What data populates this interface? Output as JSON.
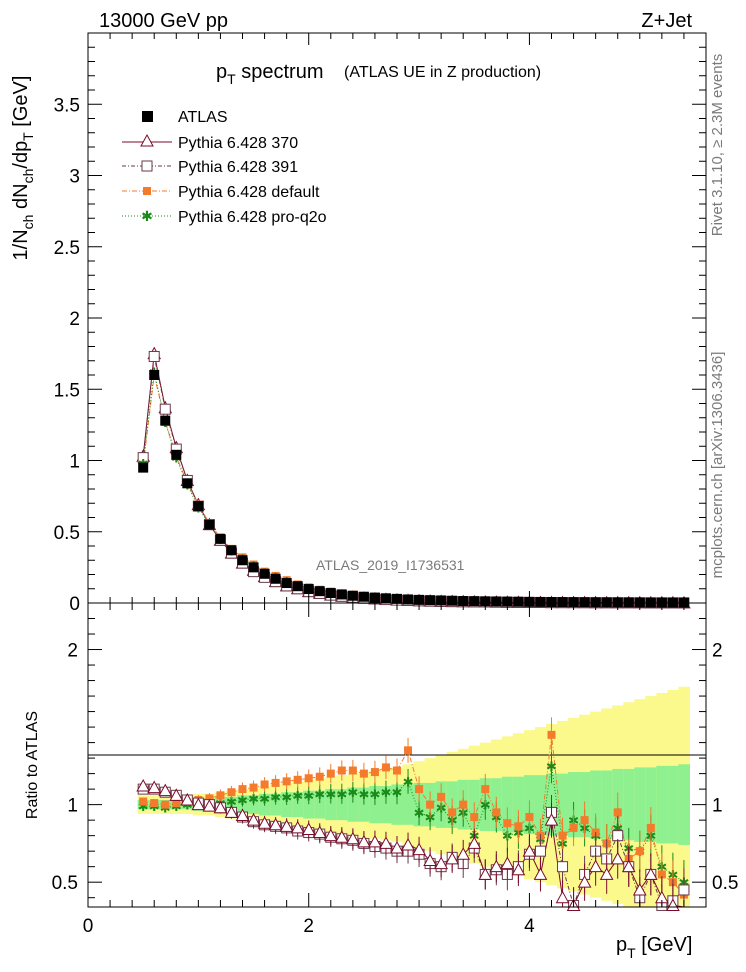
{
  "header": {
    "left": "13000 GeV pp",
    "right": "Z+Jet"
  },
  "side_labels": {
    "top": "Rivet 3.1.10, ≥ 2.3M events",
    "bottom": "mcplots.cern.ch [arXiv:1306.3436]"
  },
  "watermark": "ATLAS_2019_I1736531",
  "colors": {
    "atlas": "#000000",
    "p370": "#7a0b2a",
    "p391": "#6a3a4a",
    "default": "#f47a2c",
    "proq2o": "#1a8a1a",
    "band_inner": "#8ef08e",
    "band_outer": "#fbf98c"
  },
  "chart_data": [
    {
      "type": "scatter",
      "title_main": "p",
      "title_sub": "T",
      "title_rest": " spectrum",
      "title_note": "(ATLAS UE in Z production)",
      "ylabel": "1/N",
      "ylabel_parts": [
        "1/N",
        "ch",
        " dN",
        "ch",
        "/dp",
        "T",
        " [GeV]"
      ],
      "ylim": [
        0,
        4.0
      ],
      "yticks": [
        {
          "v": 0,
          "label": "0"
        },
        {
          "v": 0.5,
          "label": "0.5"
        },
        {
          "v": 1,
          "label": "1"
        },
        {
          "v": 1.5,
          "label": "1.5"
        },
        {
          "v": 2,
          "label": "2"
        },
        {
          "v": 2.5,
          "label": "2.5"
        },
        {
          "v": 3,
          "label": "3"
        },
        {
          "v": 3.5,
          "label": "3.5"
        }
      ],
      "legend": [
        "ATLAS",
        "Pythia 6.428 370",
        "Pythia 6.428 391",
        "Pythia 6.428 default",
        "Pythia 6.428 pro-q2o"
      ],
      "x": [
        0.5,
        0.6,
        0.7,
        0.8,
        0.9,
        1.0,
        1.1,
        1.2,
        1.3,
        1.4,
        1.5,
        1.6,
        1.7,
        1.8,
        1.9,
        2.0,
        2.1,
        2.2,
        2.3,
        2.4,
        2.5,
        2.6,
        2.7,
        2.8,
        2.9,
        3.0,
        3.1,
        3.2,
        3.3,
        3.4,
        3.5,
        3.6,
        3.7,
        3.8,
        3.9,
        4.0,
        4.1,
        4.2,
        4.3,
        4.4,
        4.5,
        4.6,
        4.7,
        4.8,
        4.9,
        5.0,
        5.1,
        5.2,
        5.3,
        5.4
      ],
      "series": [
        {
          "name": "ATLAS",
          "values": [
            0.95,
            1.6,
            1.28,
            1.04,
            0.84,
            0.68,
            0.55,
            0.45,
            0.37,
            0.3,
            0.25,
            0.205,
            0.17,
            0.14,
            0.118,
            0.098,
            0.083,
            0.07,
            0.06,
            0.051,
            0.044,
            0.038,
            0.033,
            0.029,
            0.025,
            0.022,
            0.02,
            0.018,
            0.016,
            0.014,
            0.013,
            0.012,
            0.011,
            0.01,
            0.009,
            0.008,
            0.0075,
            0.007,
            0.0065,
            0.006,
            0.0055,
            0.005,
            0.0047,
            0.0044,
            0.0041,
            0.0038,
            0.0035,
            0.0033,
            0.0031,
            0.0029
          ]
        },
        {
          "name": "Pythia 6.428 370",
          "values": [
            1.03,
            1.75,
            1.37,
            1.09,
            0.86,
            0.69,
            0.55,
            0.44,
            0.35,
            0.28,
            0.23,
            0.185,
            0.15,
            0.12,
            0.1,
            0.08,
            0.068,
            0.056,
            0.048,
            0.04,
            0.034,
            0.029,
            0.025,
            0.021,
            0.018,
            0.016,
            0.013,
            0.011,
            0.01,
            0.009,
            0.008,
            0.007,
            0.006,
            0.005,
            0.0045,
            0.004,
            0.0035,
            0.003,
            0.0028,
            0.0025,
            0.0022,
            0.002,
            0.0018,
            0.0016,
            0.0015,
            0.0014,
            0.0013,
            0.0012,
            0.0011,
            0.001
          ]
        },
        {
          "name": "Pythia 6.428 391",
          "values": [
            1.02,
            1.73,
            1.36,
            1.08,
            0.86,
            0.68,
            0.55,
            0.44,
            0.35,
            0.28,
            0.22,
            0.18,
            0.15,
            0.12,
            0.1,
            0.08,
            0.067,
            0.055,
            0.047,
            0.04,
            0.033,
            0.028,
            0.024,
            0.02,
            0.018,
            0.015,
            0.013,
            0.011,
            0.01,
            0.009,
            0.008,
            0.007,
            0.006,
            0.005,
            0.0045,
            0.004,
            0.0035,
            0.003,
            0.0028,
            0.0025,
            0.0022,
            0.002,
            0.0018,
            0.0016,
            0.0015,
            0.0014,
            0.0013,
            0.0012,
            0.0011,
            0.001
          ]
        },
        {
          "name": "Pythia 6.428 default",
          "values": [
            0.97,
            1.6,
            1.27,
            1.03,
            0.84,
            0.69,
            0.56,
            0.46,
            0.38,
            0.32,
            0.27,
            0.22,
            0.19,
            0.16,
            0.13,
            0.11,
            0.093,
            0.08,
            0.068,
            0.058,
            0.05,
            0.044,
            0.038,
            0.033,
            0.029,
            0.025,
            0.022,
            0.02,
            0.018,
            0.016,
            0.014,
            0.013,
            0.012,
            0.011,
            0.01,
            0.009,
            0.008,
            0.0075,
            0.007,
            0.0065,
            0.006,
            0.0055,
            0.005,
            0.0047,
            0.0044,
            0.0041,
            0.0038,
            0.0035,
            0.0033,
            0.0031
          ]
        },
        {
          "name": "Pythia 6.428 pro-q2o",
          "values": [
            0.98,
            1.62,
            1.27,
            1.02,
            0.83,
            0.67,
            0.55,
            0.45,
            0.37,
            0.31,
            0.26,
            0.21,
            0.18,
            0.15,
            0.12,
            0.1,
            0.086,
            0.073,
            0.062,
            0.053,
            0.045,
            0.039,
            0.034,
            0.03,
            0.026,
            0.023,
            0.02,
            0.018,
            0.016,
            0.014,
            0.013,
            0.012,
            0.011,
            0.01,
            0.009,
            0.008,
            0.0075,
            0.007,
            0.0065,
            0.006,
            0.0055,
            0.005,
            0.0047,
            0.0044,
            0.0041,
            0.0038,
            0.0035,
            0.0033,
            0.0031,
            0.0029
          ]
        }
      ]
    },
    {
      "type": "scatter",
      "ylabel": "Ratio to ATLAS",
      "xlabel_main": "p",
      "xlabel_sub": "T",
      "xlabel_rest": " [GeV]",
      "xlim": [
        0,
        5.6
      ],
      "ylim": [
        0.34,
        2.3
      ],
      "xticks": [
        {
          "v": 0,
          "label": "0"
        },
        {
          "v": 2,
          "label": "2"
        },
        {
          "v": 4,
          "label": "4"
        }
      ],
      "yticks": [
        {
          "v": 0.5,
          "label": "0.5"
        },
        {
          "v": 1,
          "label": "1"
        },
        {
          "v": 2,
          "label": "2"
        }
      ],
      "x": [
        0.5,
        0.6,
        0.7,
        0.8,
        0.9,
        1.0,
        1.1,
        1.2,
        1.3,
        1.4,
        1.5,
        1.6,
        1.7,
        1.8,
        1.9,
        2.0,
        2.1,
        2.2,
        2.3,
        2.4,
        2.5,
        2.6,
        2.7,
        2.8,
        2.9,
        3.0,
        3.1,
        3.2,
        3.3,
        3.4,
        3.5,
        3.6,
        3.7,
        3.8,
        3.9,
        4.0,
        4.1,
        4.2,
        4.3,
        4.4,
        4.5,
        4.6,
        4.7,
        4.8,
        4.9,
        5.0,
        5.1,
        5.2,
        5.3,
        5.4
      ],
      "band_inner_halfwidth": [
        0.03,
        0.03,
        0.03,
        0.03,
        0.03,
        0.04,
        0.04,
        0.05,
        0.05,
        0.06,
        0.06,
        0.07,
        0.07,
        0.08,
        0.08,
        0.09,
        0.09,
        0.1,
        0.1,
        0.11,
        0.11,
        0.12,
        0.12,
        0.13,
        0.13,
        0.14,
        0.14,
        0.15,
        0.15,
        0.16,
        0.16,
        0.17,
        0.17,
        0.18,
        0.18,
        0.19,
        0.19,
        0.2,
        0.2,
        0.21,
        0.21,
        0.22,
        0.22,
        0.23,
        0.23,
        0.24,
        0.24,
        0.25,
        0.25,
        0.26
      ],
      "band_outer_halfwidth": [
        0.06,
        0.06,
        0.06,
        0.06,
        0.06,
        0.07,
        0.07,
        0.08,
        0.09,
        0.1,
        0.11,
        0.12,
        0.13,
        0.14,
        0.15,
        0.16,
        0.17,
        0.18,
        0.19,
        0.2,
        0.21,
        0.22,
        0.23,
        0.24,
        0.26,
        0.28,
        0.3,
        0.32,
        0.34,
        0.36,
        0.38,
        0.4,
        0.42,
        0.44,
        0.46,
        0.48,
        0.5,
        0.52,
        0.54,
        0.56,
        0.58,
        0.6,
        0.62,
        0.64,
        0.66,
        0.68,
        0.7,
        0.72,
        0.74,
        0.76
      ],
      "series": [
        {
          "name": "Pythia 6.428 370",
          "values": [
            1.12,
            1.11,
            1.09,
            1.06,
            1.03,
            1.0,
            0.99,
            0.98,
            0.95,
            0.93,
            0.9,
            0.88,
            0.87,
            0.86,
            0.85,
            0.84,
            0.82,
            0.8,
            0.79,
            0.78,
            0.76,
            0.76,
            0.75,
            0.72,
            0.74,
            0.71,
            0.64,
            0.62,
            0.65,
            0.68,
            0.75,
            0.55,
            0.6,
            0.62,
            0.58,
            0.7,
            0.55,
            0.9,
            0.4,
            0.35,
            0.5,
            0.6,
            0.55,
            0.65,
            0.6,
            0.45,
            0.55,
            0.4,
            0.35,
            0.3
          ]
        },
        {
          "name": "Pythia 6.428 391",
          "values": [
            1.1,
            1.1,
            1.08,
            1.06,
            1.03,
            1.01,
            1.0,
            0.98,
            0.95,
            0.92,
            0.89,
            0.87,
            0.86,
            0.85,
            0.83,
            0.82,
            0.81,
            0.79,
            0.78,
            0.77,
            0.75,
            0.73,
            0.72,
            0.7,
            0.7,
            0.68,
            0.62,
            0.6,
            0.66,
            0.62,
            0.72,
            0.55,
            0.58,
            0.55,
            0.6,
            0.68,
            0.7,
            0.95,
            0.6,
            0.35,
            0.55,
            0.7,
            0.65,
            0.8,
            0.6,
            0.4,
            0.55,
            0.35,
            0.38,
            0.45
          ]
        },
        {
          "name": "Pythia 6.428 default",
          "values": [
            1.02,
            1.01,
            1.0,
            1.01,
            1.02,
            1.03,
            1.04,
            1.06,
            1.08,
            1.1,
            1.11,
            1.13,
            1.14,
            1.15,
            1.16,
            1.17,
            1.18,
            1.2,
            1.22,
            1.22,
            1.2,
            1.21,
            1.24,
            1.22,
            1.35,
            1.1,
            1.0,
            1.05,
            0.95,
            1.0,
            0.92,
            1.1,
            0.95,
            0.88,
            0.86,
            0.92,
            0.8,
            1.45,
            0.8,
            0.85,
            0.9,
            0.82,
            0.75,
            0.95,
            0.65,
            0.7,
            0.85,
            0.55,
            0.5,
            0.42
          ]
        },
        {
          "name": "Pythia 6.428 pro-q2o",
          "values": [
            0.99,
            0.99,
            0.98,
            0.99,
            1.0,
            1.0,
            1.0,
            1.01,
            1.02,
            1.03,
            1.04,
            1.04,
            1.05,
            1.05,
            1.06,
            1.06,
            1.07,
            1.07,
            1.07,
            1.08,
            1.07,
            1.07,
            1.08,
            1.08,
            1.15,
            0.95,
            0.92,
            0.98,
            0.9,
            0.95,
            0.8,
            1.0,
            0.92,
            0.8,
            0.82,
            0.85,
            0.78,
            1.25,
            0.75,
            0.9,
            0.85,
            0.8,
            0.75,
            0.85,
            0.72,
            0.7,
            0.8,
            0.6,
            0.55,
            0.5
          ]
        }
      ]
    }
  ]
}
